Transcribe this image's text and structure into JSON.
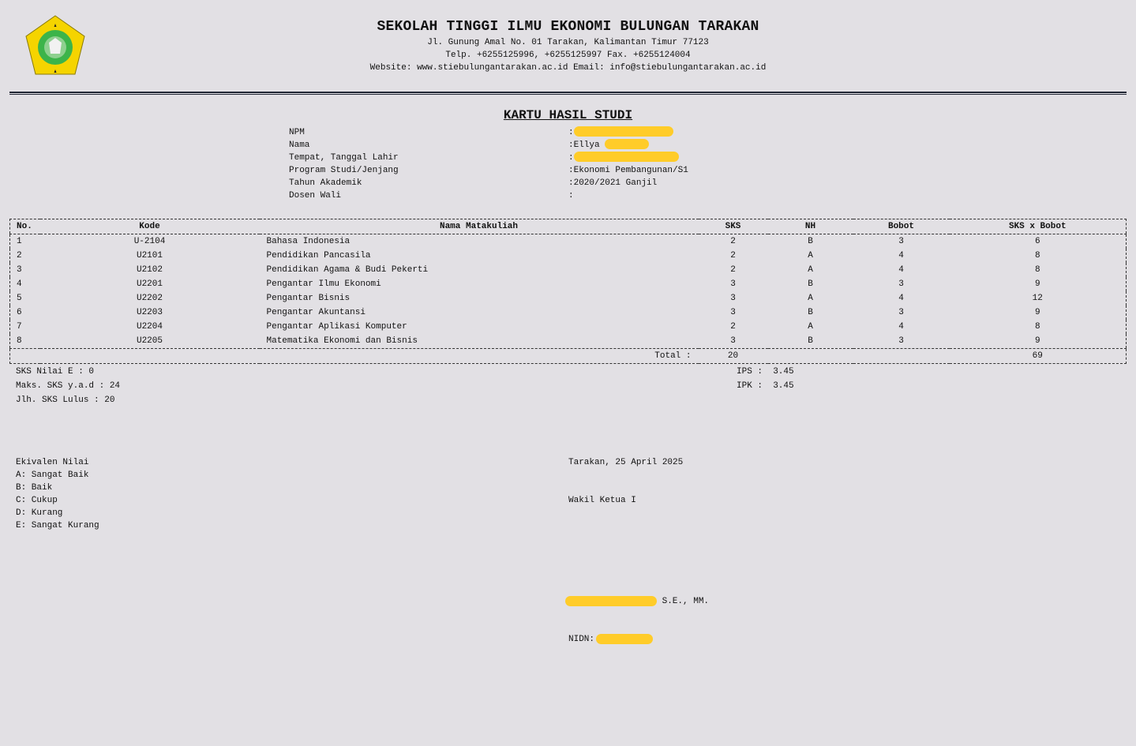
{
  "logo": {
    "text": "SEKOLAH TINGGI ILMU EKONOMI BULUNGAN TARAKAN",
    "colors": {
      "outer": "#f5d400",
      "inner": "#3cb44a"
    }
  },
  "header": {
    "title": "SEKOLAH TINGGI ILMU EKONOMI BULUNGAN TARAKAN",
    "address": "Jl. Gunung Amal No. 01 Tarakan, Kalimantan Timur 77123",
    "phone": "Telp. +6255125996, +6255125997 Fax. +6255124004",
    "web": "Website: www.stiebulungantarakan.ac.id Email: info@stiebulungantarakan.ac.id"
  },
  "document_title": "KARTU HASIL STUDI",
  "student": [
    {
      "label": "NPM",
      "value": "",
      "redacted": true
    },
    {
      "label": "Nama",
      "value": "Ellya",
      "redacted": true
    },
    {
      "label": "Tempat, Tanggal Lahir",
      "value": "",
      "redacted": true
    },
    {
      "label": "Program Studi/Jenjang",
      "value": "Ekonomi Pembangunan/S1"
    },
    {
      "label": "Tahun Akademik",
      "value": "2020/2021 Ganjil"
    },
    {
      "label": "Dosen Wali",
      "value": ""
    }
  ],
  "table": {
    "headers": [
      "No.",
      "Kode",
      "Nama Matakuliah",
      "SKS",
      "NH",
      "Bobot",
      "SKS x Bobot"
    ],
    "rows": [
      [
        "1",
        "U-2104",
        "Bahasa Indonesia",
        "2",
        "B",
        "3",
        "6"
      ],
      [
        "2",
        "U2101",
        "Pendidikan Pancasila",
        "2",
        "A",
        "4",
        "8"
      ],
      [
        "3",
        "U2102",
        "Pendidikan Agama & Budi Pekerti",
        "2",
        "A",
        "4",
        "8"
      ],
      [
        "4",
        "U2201",
        "Pengantar Ilmu Ekonomi",
        "3",
        "B",
        "3",
        "9"
      ],
      [
        "5",
        "U2202",
        "Pengantar Bisnis",
        "3",
        "A",
        "4",
        "12"
      ],
      [
        "6",
        "U2203",
        "Pengantar Akuntansi",
        "3",
        "B",
        "3",
        "9"
      ],
      [
        "7",
        "U2204",
        "Pengantar Aplikasi Komputer",
        "2",
        "A",
        "4",
        "8"
      ],
      [
        "8",
        "U2205",
        "Matematika Ekonomi dan Bisnis",
        "3",
        "B",
        "3",
        "9"
      ]
    ],
    "total_label": "Total :",
    "total_sks": "20",
    "total_sks_bobot": "69"
  },
  "summary": {
    "sks_e": "SKS Nilai E : 0",
    "maks_sks": "Maks. SKS y.a.d : 24",
    "jlh_sks": "Jlh. SKS Lulus : 20",
    "ips": "IPS :  3.45",
    "ipk": "IPK :  3.45"
  },
  "ekivalen": [
    "Ekivalen Nilai",
    "A: Sangat Baik",
    "B: Baik",
    "C: Cukup",
    "D: Kurang",
    "E: Sangat Kurang"
  ],
  "signature": {
    "place_date": "Tarakan, 25 April 2025",
    "position": "Wakil Ketua I",
    "name_suffix": "S.E., MM.",
    "nidn_label": "NIDN:"
  },
  "colors": {
    "background": "#e2e0e4",
    "redaction": "#ffcc29"
  }
}
